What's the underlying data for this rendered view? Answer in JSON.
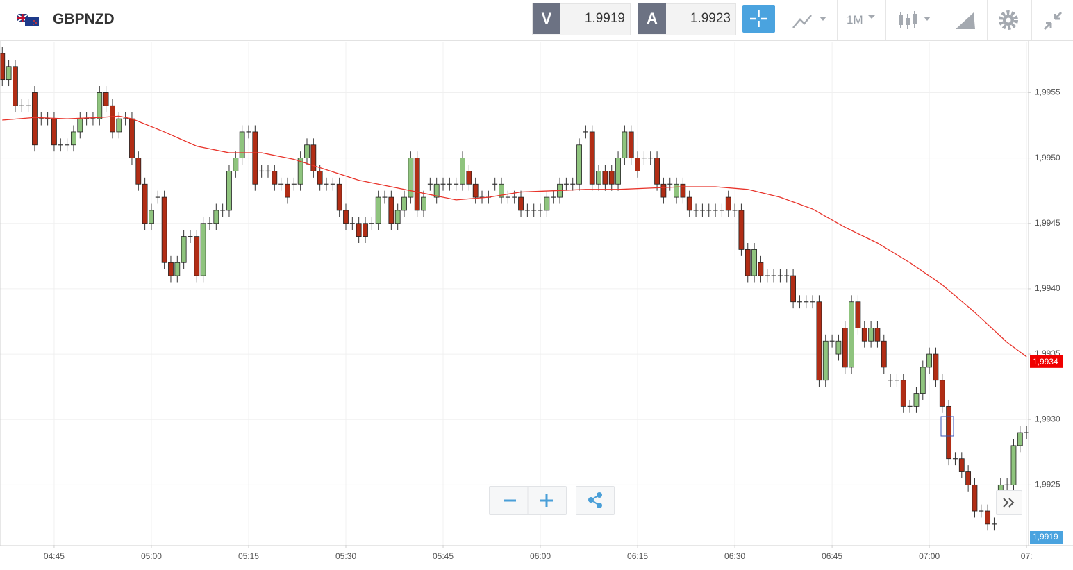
{
  "header": {
    "symbol": "GBPNZD",
    "sell_label": "V",
    "sell_price": "1.9919",
    "buy_label": "A",
    "buy_price": "1.9923",
    "timeframe": "1M"
  },
  "chart_data": {
    "type": "candlestick",
    "xlim": [
      -0.35,
      158.2
    ],
    "xticks": [
      {
        "value": 8,
        "label": "04:45"
      },
      {
        "value": 23,
        "label": "05:00"
      },
      {
        "value": 38,
        "label": "05:15"
      },
      {
        "value": 53,
        "label": "05:30"
      },
      {
        "value": 68,
        "label": "05:45"
      },
      {
        "value": 83,
        "label": "06:00"
      },
      {
        "value": 98,
        "label": "06:15"
      },
      {
        "value": 113,
        "label": "06:30"
      },
      {
        "value": 128,
        "label": "06:45"
      },
      {
        "value": 143,
        "label": "07:00"
      },
      {
        "value": 158,
        "label": "07:"
      }
    ],
    "ylim": [
      1.99204,
      1.99589
    ],
    "yticks": [
      {
        "value": 1.9955,
        "label": "1,9955"
      },
      {
        "value": 1.995,
        "label": "1,9950"
      },
      {
        "value": 1.9945,
        "label": "1,9945"
      },
      {
        "value": 1.994,
        "label": "1,9940"
      },
      {
        "value": 1.9935,
        "label": "1,9935"
      },
      {
        "value": 1.993,
        "label": "1,9930"
      },
      {
        "value": 1.9925,
        "label": "1,9925"
      }
    ],
    "grid": true,
    "up_color": "#8fc47e",
    "down_color": "#b12d15",
    "open": [
      1.9958,
      1.9956,
      1.9957,
      1.9954,
      1.9954,
      1.9955,
      1.9953,
      1.9953,
      1.9953,
      1.9951,
      1.9951,
      1.9951,
      1.9952,
      1.9953,
      1.9953,
      1.9953,
      1.9955,
      1.9954,
      1.9952,
      1.9953,
      1.9953,
      1.995,
      1.9948,
      1.9945,
      1.9947,
      1.9947,
      1.9942,
      1.9941,
      1.9942,
      1.9944,
      1.9944,
      1.9941,
      1.9945,
      1.9945,
      1.9946,
      1.9946,
      1.9949,
      1.995,
      1.9952,
      1.9952,
      1.9949,
      1.9949,
      1.9949,
      1.9948,
      1.9948,
      1.9948,
      1.9948,
      1.995,
      1.9951,
      1.9949,
      1.9948,
      1.9948,
      1.9948,
      1.9946,
      1.9945,
      1.9945,
      1.9945,
      1.9945,
      1.9945,
      1.9947,
      1.9947,
      1.9945,
      1.9946,
      1.9947,
      1.995,
      1.9946,
      1.9948,
      1.9947,
      1.9948,
      1.9948,
      1.9948,
      1.9948,
      1.9949,
      1.9948,
      1.9947,
      1.9947,
      1.9948,
      1.9947,
      1.9947,
      1.9947,
      1.9947,
      1.9946,
      1.9946,
      1.9946,
      1.9946,
      1.9947,
      1.9947,
      1.9948,
      1.9948,
      1.9948,
      1.9952,
      1.9952,
      1.9948,
      1.9949,
      1.9949,
      1.9948,
      1.995,
      1.9952,
      1.995,
      1.995,
      1.995,
      1.995,
      1.9948,
      1.9948,
      1.9947,
      1.9948,
      1.9947,
      1.9946,
      1.9946,
      1.9946,
      1.9946,
      1.9946,
      1.9947,
      1.9946,
      1.9946,
      1.9943,
      1.9941,
      1.9942,
      1.9941,
      1.9941,
      1.9941,
      1.9941,
      1.9941,
      1.9939,
      1.9939,
      1.9939,
      1.9939,
      1.9933,
      1.9936,
      1.9935,
      1.9937,
      1.9934,
      1.9939,
      1.9937,
      1.9936,
      1.9937,
      1.9936,
      1.9933,
      1.9933,
      1.9933,
      1.9931,
      1.9931,
      1.9932,
      1.9934,
      1.9935,
      1.9933,
      1.9931,
      1.9927,
      1.9927,
      1.9926,
      1.9925,
      1.9923,
      1.9923,
      1.9922,
      1.9924,
      1.9925,
      1.9925,
      1.9928,
      1.9929
    ],
    "high": [
      1.99585,
      1.99575,
      1.99575,
      1.99545,
      1.99545,
      1.99555,
      1.99535,
      1.99535,
      1.99535,
      1.99515,
      1.99515,
      1.99525,
      1.99535,
      1.99535,
      1.99535,
      1.99555,
      1.99555,
      1.99545,
      1.99535,
      1.99535,
      1.99535,
      1.99505,
      1.99485,
      1.99465,
      1.99475,
      1.99475,
      1.99425,
      1.99425,
      1.99445,
      1.99445,
      1.99445,
      1.99455,
      1.99455,
      1.99465,
      1.99465,
      1.99495,
      1.99505,
      1.99525,
      1.99525,
      1.99525,
      1.99495,
      1.99495,
      1.99495,
      1.99485,
      1.99485,
      1.99485,
      1.99505,
      1.99515,
      1.99515,
      1.99495,
      1.99485,
      1.99485,
      1.99485,
      1.99465,
      1.99455,
      1.99455,
      1.99455,
      1.99455,
      1.99475,
      1.99475,
      1.99475,
      1.99465,
      1.99475,
      1.99505,
      1.99505,
      1.99475,
      1.99485,
      1.99485,
      1.99485,
      1.99485,
      1.99485,
      1.99505,
      1.99495,
      1.99485,
      1.99475,
      1.99475,
      1.99485,
      1.99485,
      1.99475,
      1.99475,
      1.99475,
      1.99465,
      1.99465,
      1.99465,
      1.99475,
      1.99475,
      1.99485,
      1.99485,
      1.99485,
      1.99515,
      1.99525,
      1.99525,
      1.99495,
      1.99495,
      1.99495,
      1.99505,
      1.99525,
      1.99525,
      1.99505,
      1.99505,
      1.99505,
      1.99505,
      1.99485,
      1.99485,
      1.99485,
      1.99485,
      1.99475,
      1.99465,
      1.99465,
      1.99465,
      1.99465,
      1.99465,
      1.99475,
      1.99465,
      1.99465,
      1.99435,
      1.99435,
      1.99425,
      1.99415,
      1.99415,
      1.99415,
      1.99415,
      1.99415,
      1.99395,
      1.99395,
      1.99395,
      1.99395,
      1.99365,
      1.99365,
      1.99365,
      1.99375,
      1.99395,
      1.99395,
      1.99375,
      1.99375,
      1.99375,
      1.99365,
      1.99335,
      1.99335,
      1.99335,
      1.99315,
      1.99325,
      1.99345,
      1.99355,
      1.99355,
      1.99335,
      1.99315,
      1.99275,
      1.99275,
      1.99265,
      1.99255,
      1.99235,
      1.99235,
      1.99225,
      1.99255,
      1.99255,
      1.99285,
      1.99295,
      1.99295
    ],
    "low": [
      1.99555,
      1.99555,
      1.99535,
      1.99535,
      1.99535,
      1.99505,
      1.99525,
      1.99525,
      1.99505,
      1.99505,
      1.99505,
      1.99505,
      1.99515,
      1.99525,
      1.99525,
      1.99525,
      1.99535,
      1.99515,
      1.99515,
      1.99525,
      1.99495,
      1.99475,
      1.99445,
      1.99445,
      1.99465,
      1.99415,
      1.99405,
      1.99405,
      1.99415,
      1.99435,
      1.99405,
      1.99405,
      1.99445,
      1.99445,
      1.99455,
      1.99455,
      1.99485,
      1.99495,
      1.99515,
      1.99475,
      1.99485,
      1.99485,
      1.99475,
      1.99475,
      1.99465,
      1.99475,
      1.99475,
      1.99495,
      1.99485,
      1.99475,
      1.99475,
      1.99475,
      1.99455,
      1.99445,
      1.99445,
      1.99435,
      1.99435,
      1.99445,
      1.99445,
      1.99465,
      1.99445,
      1.99445,
      1.99455,
      1.99465,
      1.99455,
      1.99455,
      1.99475,
      1.99465,
      1.99475,
      1.99475,
      1.99475,
      1.99475,
      1.99475,
      1.99465,
      1.99465,
      1.99465,
      1.99475,
      1.99465,
      1.99465,
      1.99465,
      1.99455,
      1.99455,
      1.99455,
      1.99455,
      1.99455,
      1.99465,
      1.99465,
      1.99475,
      1.99475,
      1.99475,
      1.99515,
      1.99475,
      1.99475,
      1.99475,
      1.99475,
      1.99475,
      1.99495,
      1.99495,
      1.99485,
      1.99495,
      1.99495,
      1.99475,
      1.99465,
      1.99475,
      1.99465,
      1.99465,
      1.99455,
      1.99455,
      1.99455,
      1.99455,
      1.99455,
      1.99455,
      1.99455,
      1.99455,
      1.99425,
      1.99405,
      1.99405,
      1.99405,
      1.99405,
      1.99405,
      1.99405,
      1.99405,
      1.99385,
      1.99385,
      1.99385,
      1.99385,
      1.99325,
      1.99325,
      1.99355,
      1.99345,
      1.99335,
      1.99335,
      1.99365,
      1.99355,
      1.99355,
      1.99355,
      1.99335,
      1.99325,
      1.99325,
      1.99305,
      1.99305,
      1.99305,
      1.99315,
      1.99335,
      1.99325,
      1.99305,
      1.99265,
      1.99265,
      1.99255,
      1.99245,
      1.99225,
      1.99225,
      1.99215,
      1.99215,
      1.99235,
      1.99245,
      1.99245,
      1.99275,
      1.99285
    ],
    "close": [
      1.9956,
      1.9957,
      1.9954,
      1.9954,
      1.9954,
      1.9951,
      1.9953,
      1.9953,
      1.9951,
      1.9951,
      1.9951,
      1.9952,
      1.9953,
      1.9953,
      1.9953,
      1.9955,
      1.9954,
      1.9952,
      1.9953,
      1.9953,
      1.995,
      1.9948,
      1.9945,
      1.9946,
      1.9947,
      1.9942,
      1.9941,
      1.9942,
      1.9944,
      1.9944,
      1.9941,
      1.9945,
      1.9945,
      1.9946,
      1.9946,
      1.9949,
      1.995,
      1.9952,
      1.9952,
      1.9948,
      1.9949,
      1.9949,
      1.9948,
      1.9948,
      1.9947,
      1.9948,
      1.995,
      1.9951,
      1.9949,
      1.9948,
      1.9948,
      1.9948,
      1.9946,
      1.9945,
      1.9945,
      1.9944,
      1.9944,
      1.9945,
      1.9947,
      1.9947,
      1.9945,
      1.9946,
      1.9947,
      1.995,
      1.9946,
      1.9947,
      1.9948,
      1.9948,
      1.9948,
      1.9948,
      1.9948,
      1.995,
      1.9948,
      1.9947,
      1.9947,
      1.9947,
      1.9948,
      1.9948,
      1.9947,
      1.9947,
      1.9946,
      1.9946,
      1.9946,
      1.9946,
      1.9947,
      1.9947,
      1.9948,
      1.9948,
      1.9948,
      1.9951,
      1.9952,
      1.9948,
      1.9949,
      1.9948,
      1.9948,
      1.995,
      1.9952,
      1.995,
      1.9949,
      1.995,
      1.995,
      1.9948,
      1.9947,
      1.9948,
      1.9948,
      1.9947,
      1.9946,
      1.9946,
      1.9946,
      1.9946,
      1.9946,
      1.9946,
      1.9946,
      1.9946,
      1.9943,
      1.9941,
      1.9943,
      1.9941,
      1.9941,
      1.9941,
      1.9941,
      1.9941,
      1.9939,
      1.9939,
      1.9939,
      1.9939,
      1.9933,
      1.9936,
      1.9936,
      1.9936,
      1.9934,
      1.9939,
      1.9937,
      1.9936,
      1.9937,
      1.9936,
      1.9934,
      1.9933,
      1.9933,
      1.9931,
      1.9931,
      1.9932,
      1.9934,
      1.9935,
      1.9933,
      1.9931,
      1.9927,
      1.9927,
      1.9926,
      1.9925,
      1.9923,
      1.9923,
      1.9922,
      1.9922,
      1.9925,
      1.9925,
      1.9928,
      1.9929,
      1.9929
    ],
    "moving_average": {
      "color": "#e8332a",
      "x": [
        0,
        5,
        10,
        15,
        18,
        20,
        25,
        30,
        35,
        40,
        45,
        50,
        55,
        60,
        65,
        70,
        75,
        80,
        85,
        90,
        95,
        100,
        105,
        110,
        115,
        120,
        125,
        130,
        135,
        140,
        145,
        150,
        155,
        158
      ],
      "values": [
        1.99529,
        1.99531,
        1.9953,
        1.99531,
        1.99532,
        1.9953,
        1.9952,
        1.99509,
        1.99504,
        1.99504,
        1.99499,
        1.99491,
        1.99483,
        1.99478,
        1.99473,
        1.99468,
        1.9947,
        1.99474,
        1.99475,
        1.99476,
        1.99476,
        1.99477,
        1.99478,
        1.99478,
        1.99476,
        1.9947,
        1.99461,
        1.99447,
        1.99435,
        1.9942,
        1.99403,
        1.99382,
        1.99359,
        1.99348
      ]
    },
    "tags": {
      "ma": "1,9934",
      "price": "1,9919"
    }
  }
}
